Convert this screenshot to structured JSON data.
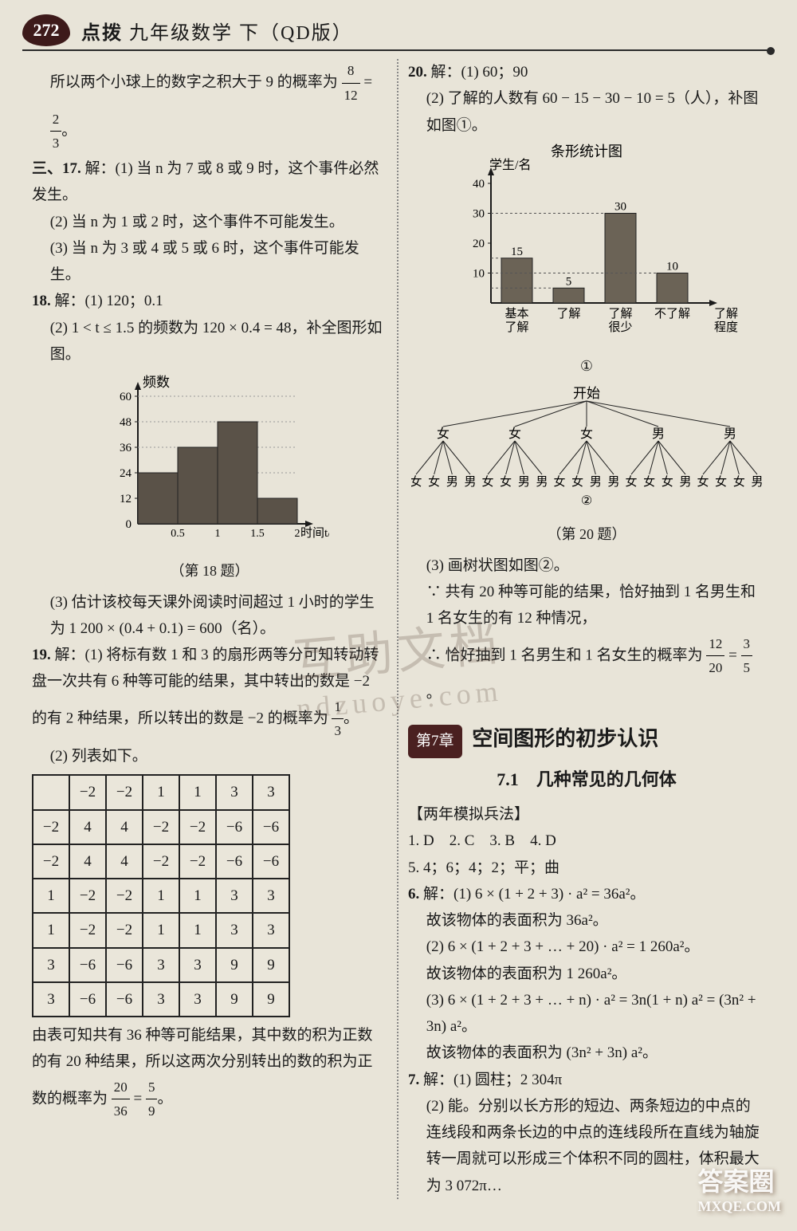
{
  "header": {
    "page_no": "272",
    "brand": "点拨",
    "title": "九年级数学 下（QD版）"
  },
  "left": {
    "intro": "所以两个小球上的数字之积大于 9 的概率为",
    "frac0": {
      "n": "8",
      "d": "12"
    },
    "eq0": " = ",
    "frac1": {
      "n": "2",
      "d": "3"
    },
    "dot0": "。",
    "q17_label": "三、17.",
    "q17_head": "解：(1) 当 n 为 7 或 8 或 9 时，这个事件必然发生。",
    "q17_2": "(2) 当 n 为 1 或 2 时，这个事件不可能发生。",
    "q17_3": "(3) 当 n 为 3 或 4 或 5 或 6 时，这个事件可能发生。",
    "q18_label": "18.",
    "q18_head": "解：(1) 120；0.1",
    "q18_2": "(2) 1 < t ≤ 1.5 的频数为 120 × 0.4 = 48，补全图形如图。",
    "chart18": {
      "type": "bar",
      "title": "频数",
      "xlabel": "时间t/h",
      "categories": [
        "0.5",
        "1",
        "1.5",
        "2"
      ],
      "values": [
        24,
        36,
        48,
        12
      ],
      "ymax": 60,
      "ytick_step": 12,
      "bar_color": "#5a5248",
      "axis_color": "#1a1a1a",
      "bg": "#e8e4d8"
    },
    "cap18": "（第 18 题）",
    "q18_3a": "(3) 估计该校每天课外阅读时间超过 1 小时的学生为 1 200 × (0.4 + 0.1) = 600（名）。",
    "q19_label": "19.",
    "q19_head": "解：(1) 将标有数 1 和 3 的扇形两等分可知转动转盘一次共有 6 种等可能的结果，其中转出的数是 −2 的有 2 种结果，所以转出的数是 −2 的概率为",
    "frac19a": {
      "n": "1",
      "d": "3"
    },
    "dot19": "。",
    "q19_2": "(2) 列表如下。",
    "table19": {
      "headers": [
        "",
        "−2",
        "−2",
        "1",
        "1",
        "3",
        "3"
      ],
      "rows": [
        [
          "−2",
          "4",
          "4",
          "−2",
          "−2",
          "−6",
          "−6"
        ],
        [
          "−2",
          "4",
          "4",
          "−2",
          "−2",
          "−6",
          "−6"
        ],
        [
          "1",
          "−2",
          "−2",
          "1",
          "1",
          "3",
          "3"
        ],
        [
          "1",
          "−2",
          "−2",
          "1",
          "1",
          "3",
          "3"
        ],
        [
          "3",
          "−6",
          "−6",
          "3",
          "3",
          "9",
          "9"
        ],
        [
          "3",
          "−6",
          "−6",
          "3",
          "3",
          "9",
          "9"
        ]
      ]
    },
    "q19_tail": "由表可知共有 36 种等可能结果，其中数的积为正数的有 20 种结果，所以这两次分别转出的数的积为正数的概率为",
    "frac19b": {
      "n": "20",
      "d": "36"
    },
    "eq19": " = ",
    "frac19c": {
      "n": "5",
      "d": "9"
    },
    "dot19b": "。"
  },
  "right": {
    "q20_label": "20.",
    "q20_head": "解：(1) 60；90",
    "q20_2": "(2) 了解的人数有 60 − 15 − 30 − 10 = 5（人），补图如图①。",
    "chart20": {
      "type": "bar",
      "title": "条形统计图",
      "ylabel": "学生/名",
      "xlabel": "了解\n程度",
      "categories": [
        "基本\n了解",
        "了解",
        "了解\n很少",
        "不了解"
      ],
      "values": [
        15,
        5,
        30,
        10
      ],
      "value_labels": [
        "15",
        "5",
        "30",
        "10"
      ],
      "ymax": 40,
      "ytick_step": 10,
      "bar_color": "#6b6356",
      "axis_color": "#1a1a1a"
    },
    "cap20a": "①",
    "tree": {
      "root": "开始",
      "level1": [
        "女",
        "女",
        "女",
        "男",
        "男"
      ],
      "level2": [
        [
          "女",
          "女",
          "男",
          "男"
        ],
        [
          "女",
          "女",
          "男",
          "男"
        ],
        [
          "女",
          "女",
          "男",
          "男"
        ],
        [
          "女",
          "女",
          "女",
          "男"
        ],
        [
          "女",
          "女",
          "女",
          "男"
        ]
      ],
      "mark": "②"
    },
    "cap20b": "（第 20 题）",
    "q20_3a": "(3) 画树状图如图②。",
    "q20_3b": "∵ 共有 20 种等可能的结果，恰好抽到 1 名男生和 1 名女生的有 12 种情况，",
    "q20_3c": "∴ 恰好抽到 1 名男生和 1 名女生的概率为",
    "frac20": {
      "n": "12",
      "d": "20"
    },
    "eq20": " = ",
    "frac20b": {
      "n": "3",
      "d": "5"
    },
    "dot20": "。",
    "chapter_badge": "第7章",
    "chapter_title": "空间图形的初步认识",
    "sec7_1": "7.1　几种常见的几何体",
    "boxlabel": "【两年模拟兵法】",
    "ans_line": "1. D　2. C　3. B　4. D",
    "ans5": "5. 4；6；4；2；平；曲",
    "q6_label": "6.",
    "q6_1": "解：(1) 6 × (1 + 2 + 3) · a² = 36a²。",
    "q6_1b": "故该物体的表面积为 36a²。",
    "q6_2": "(2) 6 × (1 + 2 + 3 + … + 20) · a² = 1 260a²。",
    "q6_2b": "故该物体的表面积为 1 260a²。",
    "q6_3": "(3) 6 × (1 + 2 + 3 + … + n) · a² = 3n(1 + n) a² = (3n² + 3n) a²。",
    "q6_3b": "故该物体的表面积为 (3n² + 3n) a²。",
    "q7_label": "7.",
    "q7_head": "解：(1) 圆柱；2 304π",
    "q7_2": "(2) 能。分别以长方形的短边、两条短边的中点的连线段和两条长边的中点的连线段所在直线为轴旋转一周就可以形成三个体积不同的圆柱，体积最大为 3 072π…"
  },
  "watermark": {
    "main": "互助文档",
    "sub": "ndzuoye.com",
    "corner": "答案圈",
    "corner2": "MXQE.COM"
  }
}
